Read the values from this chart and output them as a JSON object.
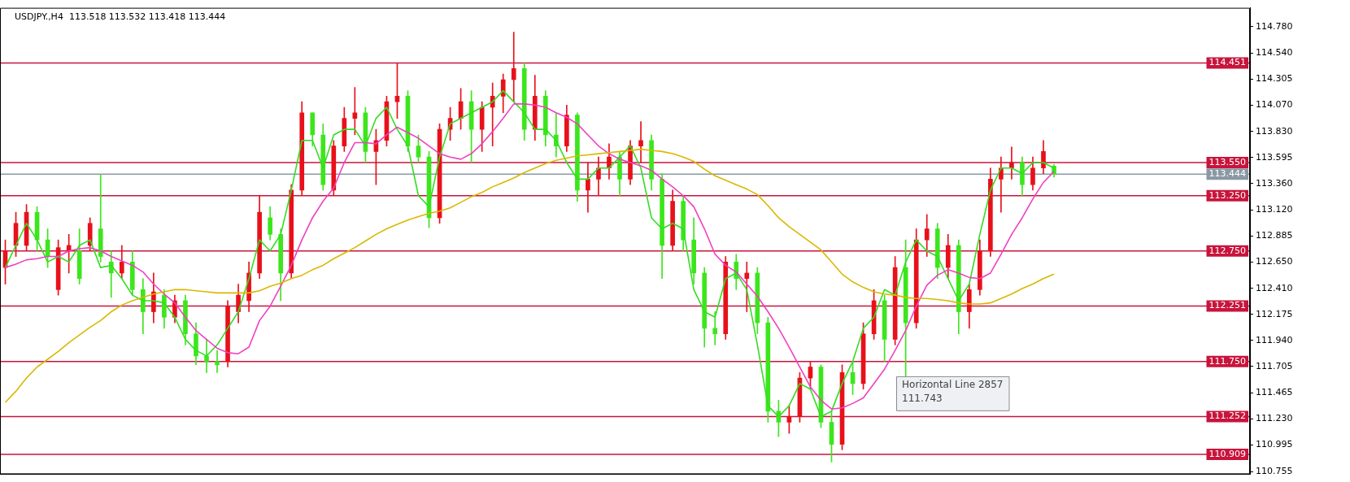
{
  "chart_data": {
    "type": "candlestick",
    "title": "USDJPY.,H4  113.518 113.532 113.418 113.444",
    "categories": [
      null,
      null,
      null,
      null,
      null,
      null,
      null,
      null,
      null,
      null,
      null,
      null,
      null,
      null,
      null,
      null,
      null,
      null,
      null,
      null,
      null,
      null,
      null,
      null,
      null,
      null,
      null,
      null,
      null,
      null,
      null,
      null,
      null,
      null,
      null,
      null,
      null,
      null,
      null,
      null,
      null,
      null,
      null,
      null,
      null,
      null,
      null,
      null,
      null,
      null,
      null,
      null,
      null,
      null,
      null,
      null,
      null,
      null,
      null,
      null,
      null,
      null,
      null,
      null,
      null,
      null,
      null,
      null,
      null,
      null,
      null,
      null,
      null,
      null,
      null,
      null,
      null,
      null,
      null,
      null,
      null,
      null,
      null,
      null,
      null,
      null,
      null,
      null,
      null,
      null,
      null,
      null,
      null,
      null,
      null,
      null,
      null,
      null,
      null,
      null,
      null,
      null,
      null,
      null,
      null,
      null,
      null,
      null,
      null,
      null,
      null,
      null,
      null,
      null,
      null,
      null,
      null,
      null
    ],
    "ohlc": [
      [
        112.6,
        112.85,
        112.45,
        112.75
      ],
      [
        112.8,
        113.1,
        112.7,
        113.0
      ],
      [
        112.8,
        113.17,
        112.75,
        113.1
      ],
      [
        113.1,
        113.15,
        112.75,
        112.85
      ],
      [
        112.85,
        112.95,
        112.6,
        112.7
      ],
      [
        112.4,
        112.85,
        112.35,
        112.78
      ],
      [
        112.75,
        112.9,
        112.55,
        112.8
      ],
      [
        112.75,
        112.95,
        112.45,
        112.5
      ],
      [
        112.8,
        113.05,
        112.75,
        113.0
      ],
      [
        112.95,
        113.44,
        112.65,
        112.7
      ],
      [
        112.65,
        112.75,
        112.33,
        112.55
      ],
      [
        112.55,
        112.8,
        112.5,
        112.65
      ],
      [
        112.65,
        112.75,
        112.35,
        112.4
      ],
      [
        112.4,
        112.5,
        112.0,
        112.2
      ],
      [
        112.2,
        112.55,
        112.1,
        112.38
      ],
      [
        112.35,
        112.4,
        112.05,
        112.15
      ],
      [
        112.15,
        112.35,
        112.1,
        112.3
      ],
      [
        112.3,
        112.35,
        111.9,
        112.0
      ],
      [
        112.0,
        112.1,
        111.72,
        111.8
      ],
      [
        111.8,
        111.95,
        111.65,
        111.75
      ],
      [
        111.75,
        111.85,
        111.65,
        111.72
      ],
      [
        111.75,
        112.3,
        111.7,
        112.25
      ],
      [
        112.2,
        112.45,
        112.1,
        112.35
      ],
      [
        112.3,
        112.65,
        112.2,
        112.55
      ],
      [
        112.55,
        113.25,
        112.5,
        113.1
      ],
      [
        113.05,
        113.15,
        112.85,
        112.9
      ],
      [
        112.9,
        112.95,
        112.3,
        112.55
      ],
      [
        112.55,
        113.35,
        112.5,
        113.3
      ],
      [
        113.3,
        114.1,
        113.25,
        114.0
      ],
      [
        114.0,
        114.0,
        113.7,
        113.8
      ],
      [
        113.8,
        113.9,
        113.3,
        113.35
      ],
      [
        113.3,
        113.75,
        113.25,
        113.7
      ],
      [
        113.7,
        114.05,
        113.65,
        113.95
      ],
      [
        113.95,
        114.23,
        113.8,
        114.0
      ],
      [
        114.0,
        114.05,
        113.55,
        113.65
      ],
      [
        113.65,
        113.85,
        113.35,
        113.75
      ],
      [
        113.75,
        114.15,
        113.7,
        114.1
      ],
      [
        114.1,
        114.45,
        113.95,
        114.15
      ],
      [
        114.15,
        114.2,
        113.65,
        113.7
      ],
      [
        113.7,
        113.8,
        113.55,
        113.6
      ],
      [
        113.6,
        113.65,
        112.96,
        113.05
      ],
      [
        113.05,
        113.9,
        113.0,
        113.85
      ],
      [
        113.85,
        114.05,
        113.75,
        113.95
      ],
      [
        113.95,
        114.22,
        113.85,
        114.1
      ],
      [
        114.1,
        114.2,
        113.55,
        113.85
      ],
      [
        113.85,
        114.1,
        113.65,
        114.05
      ],
      [
        114.05,
        114.27,
        113.7,
        114.15
      ],
      [
        114.15,
        114.35,
        114.0,
        114.3
      ],
      [
        114.3,
        114.73,
        114.1,
        114.4
      ],
      [
        114.4,
        114.45,
        113.75,
        113.85
      ],
      [
        113.85,
        114.34,
        113.75,
        114.15
      ],
      [
        114.15,
        114.2,
        113.7,
        113.8
      ],
      [
        113.8,
        114.0,
        113.6,
        113.7
      ],
      [
        113.7,
        114.07,
        113.65,
        113.98
      ],
      [
        113.98,
        114.0,
        113.2,
        113.3
      ],
      [
        113.3,
        113.55,
        113.1,
        113.4
      ],
      [
        113.4,
        113.6,
        113.25,
        113.5
      ],
      [
        113.5,
        113.72,
        113.4,
        113.6
      ],
      [
        113.6,
        113.65,
        113.25,
        113.4
      ],
      [
        113.4,
        113.75,
        113.35,
        113.7
      ],
      [
        113.7,
        113.92,
        113.55,
        113.75
      ],
      [
        113.75,
        113.8,
        113.3,
        113.4
      ],
      [
        113.4,
        113.45,
        112.5,
        112.8
      ],
      [
        112.8,
        113.3,
        112.75,
        113.2
      ],
      [
        113.2,
        113.25,
        112.75,
        112.85
      ],
      [
        112.85,
        113.05,
        112.45,
        112.55
      ],
      [
        112.55,
        112.6,
        111.88,
        112.05
      ],
      [
        112.05,
        112.2,
        111.9,
        112.0
      ],
      [
        112.0,
        112.7,
        111.95,
        112.65
      ],
      [
        112.65,
        112.72,
        112.4,
        112.5
      ],
      [
        112.5,
        112.65,
        112.2,
        112.55
      ],
      [
        112.55,
        112.6,
        112.0,
        112.1
      ],
      [
        112.1,
        112.15,
        111.2,
        111.3
      ],
      [
        111.3,
        111.4,
        111.07,
        111.2
      ],
      [
        111.2,
        111.35,
        111.1,
        111.25
      ],
      [
        111.25,
        111.65,
        111.2,
        111.6
      ],
      [
        111.6,
        111.75,
        111.5,
        111.7
      ],
      [
        111.7,
        111.72,
        111.15,
        111.2
      ],
      [
        111.2,
        111.3,
        110.84,
        111.0
      ],
      [
        111.0,
        111.72,
        110.95,
        111.65
      ],
      [
        111.65,
        111.75,
        111.45,
        111.55
      ],
      [
        111.55,
        112.1,
        111.5,
        112.0
      ],
      [
        112.0,
        112.4,
        111.95,
        112.3
      ],
      [
        112.3,
        112.35,
        111.75,
        111.95
      ],
      [
        111.95,
        112.7,
        111.9,
        112.6
      ],
      [
        112.6,
        112.85,
        111.61,
        112.1
      ],
      [
        112.1,
        112.95,
        112.05,
        112.85
      ],
      [
        112.85,
        113.08,
        112.7,
        112.95
      ],
      [
        112.95,
        113.0,
        112.5,
        112.6
      ],
      [
        112.6,
        112.9,
        112.5,
        112.8
      ],
      [
        112.8,
        112.85,
        112.0,
        112.2
      ],
      [
        112.2,
        112.45,
        112.05,
        112.4
      ],
      [
        112.4,
        112.85,
        112.35,
        112.75
      ],
      [
        112.75,
        113.5,
        112.7,
        113.4
      ],
      [
        113.4,
        113.6,
        113.1,
        113.5
      ],
      [
        113.5,
        113.69,
        113.4,
        113.55
      ],
      [
        113.55,
        113.6,
        113.25,
        113.35
      ],
      [
        113.35,
        113.6,
        113.3,
        113.5
      ],
      [
        113.5,
        113.75,
        113.45,
        113.65
      ],
      [
        113.518,
        113.532,
        113.418,
        113.444
      ],
      null,
      null,
      null,
      null,
      null,
      null,
      null,
      null,
      null,
      null,
      null,
      null,
      null,
      null,
      null,
      null,
      null,
      null
    ],
    "colors": [
      "#e8101a",
      "#e8101a",
      "#e8101a",
      "#3ce61c",
      "#3ce61c",
      "#e8101a",
      "#e8101a",
      "#3ce61c",
      "#e8101a",
      "#3ce61c",
      "#3ce61c",
      "#e8101a",
      "#3ce61c",
      "#3ce61c",
      "#e8101a",
      "#3ce61c",
      "#e8101a",
      "#3ce61c",
      "#3ce61c",
      "#3ce61c",
      "#3ce61c",
      "#e8101a",
      "#e8101a",
      "#e8101a",
      "#e8101a",
      "#3ce61c",
      "#3ce61c",
      "#e8101a",
      "#e8101a",
      "#3ce61c",
      "#3ce61c",
      "#e8101a",
      "#e8101a",
      "#e8101a",
      "#3ce61c",
      "#e8101a",
      "#e8101a",
      "#e8101a",
      "#3ce61c",
      "#3ce61c",
      "#3ce61c",
      "#e8101a",
      "#e8101a",
      "#e8101a",
      "#3ce61c",
      "#e8101a",
      "#e8101a",
      "#e8101a",
      "#e8101a",
      "#3ce61c",
      "#e8101a",
      "#3ce61c",
      "#3ce61c",
      "#e8101a",
      "#3ce61c",
      "#e8101a",
      "#e8101a",
      "#e8101a",
      "#3ce61c",
      "#e8101a",
      "#e8101a",
      "#3ce61c",
      "#3ce61c",
      "#e8101a",
      "#3ce61c",
      "#3ce61c",
      "#3ce61c",
      "#3ce61c",
      "#e8101a",
      "#3ce61c",
      "#e8101a",
      "#3ce61c",
      "#3ce61c",
      "#3ce61c",
      "#e8101a",
      "#e8101a",
      "#e8101a",
      "#3ce61c",
      "#3ce61c",
      "#e8101a",
      "#3ce61c",
      "#e8101a",
      "#e8101a",
      "#3ce61c",
      "#e8101a",
      "#3ce61c",
      "#e8101a",
      "#e8101a",
      "#3ce61c",
      "#e8101a",
      "#3ce61c",
      "#e8101a",
      "#e8101a",
      "#e8101a",
      "#e8101a",
      "#e8101a",
      "#3ce61c",
      "#e8101a",
      "#e8101a",
      "#3ce61c",
      null,
      null,
      null,
      null,
      null,
      null,
      null,
      null,
      null,
      null,
      null,
      null,
      null,
      null,
      null,
      null,
      null,
      null
    ],
    "series": [
      {
        "type": "line",
        "color": "#d9b800",
        "values": [
          111.38,
          111.48,
          111.6,
          111.7,
          111.77,
          111.84,
          111.92,
          111.99,
          112.06,
          112.12,
          112.2,
          112.26,
          112.3,
          112.33,
          112.36,
          112.38,
          112.4,
          112.4,
          112.39,
          112.38,
          112.37,
          112.37,
          112.37,
          112.37,
          112.39,
          112.43,
          112.46,
          112.5,
          112.53,
          112.58,
          112.62,
          112.68,
          112.73,
          112.78,
          112.84,
          112.9,
          112.95,
          112.99,
          113.03,
          113.06,
          113.09,
          113.11,
          113.14,
          113.19,
          113.24,
          113.28,
          113.33,
          113.37,
          113.41,
          113.46,
          113.5,
          113.54,
          113.57,
          113.59,
          113.61,
          113.62,
          113.63,
          113.64,
          113.65,
          113.66,
          113.67,
          113.66,
          113.65,
          113.63,
          113.6,
          113.56,
          113.49,
          113.43,
          113.39,
          113.35,
          113.31,
          113.26,
          113.16,
          113.05,
          112.97,
          112.9,
          112.83,
          112.76,
          112.65,
          112.54,
          112.47,
          112.42,
          112.38,
          112.36,
          112.35,
          112.33,
          112.32,
          112.32,
          112.31,
          112.3,
          112.28,
          112.27,
          112.27,
          112.28,
          112.32,
          112.36,
          112.41,
          112.45,
          112.5,
          112.54,
          null,
          null,
          null,
          null,
          null,
          null,
          null,
          null,
          null,
          null,
          null,
          null,
          null,
          null,
          null,
          null,
          null,
          null
        ]
      },
      {
        "type": "line",
        "color": "#f040c0",
        "values": [
          112.6,
          112.63,
          112.67,
          112.68,
          112.7,
          112.7,
          112.75,
          112.77,
          112.78,
          112.75,
          112.7,
          112.66,
          112.62,
          112.56,
          112.45,
          112.36,
          112.28,
          112.15,
          112.03,
          111.95,
          111.87,
          111.83,
          111.82,
          111.88,
          112.12,
          112.25,
          112.43,
          112.62,
          112.85,
          113.05,
          113.2,
          113.32,
          113.55,
          113.73,
          113.73,
          113.72,
          113.8,
          113.87,
          113.82,
          113.77,
          113.7,
          113.63,
          113.6,
          113.58,
          113.63,
          113.72,
          113.83,
          113.95,
          114.08,
          114.08,
          114.07,
          114.05,
          114.0,
          113.96,
          113.9,
          113.8,
          113.7,
          113.63,
          113.58,
          113.55,
          113.52,
          113.48,
          113.4,
          113.33,
          113.25,
          113.15,
          112.95,
          112.72,
          112.62,
          112.56,
          112.45,
          112.34,
          112.2,
          112.05,
          111.88,
          111.7,
          111.52,
          111.4,
          111.32,
          111.33,
          111.37,
          111.42,
          111.55,
          111.68,
          111.85,
          112.03,
          112.25,
          112.44,
          112.53,
          112.58,
          112.55,
          112.51,
          112.5,
          112.55,
          112.72,
          112.9,
          113.05,
          113.22,
          113.37,
          113.47,
          null,
          null,
          null,
          null,
          null,
          null,
          null,
          null,
          null,
          null,
          null,
          null,
          null,
          null,
          null,
          null,
          null,
          null
        ]
      },
      {
        "type": "line",
        "color": "#33dd22",
        "values": [
          112.6,
          112.8,
          113.0,
          112.85,
          112.65,
          112.7,
          112.65,
          112.8,
          112.85,
          112.6,
          112.62,
          112.5,
          112.35,
          112.3,
          112.3,
          112.28,
          112.15,
          111.95,
          111.85,
          111.8,
          111.9,
          112.05,
          112.2,
          112.5,
          112.85,
          112.75,
          112.9,
          113.3,
          113.75,
          113.75,
          113.5,
          113.8,
          113.85,
          113.85,
          113.7,
          113.95,
          114.05,
          113.85,
          113.7,
          113.25,
          113.15,
          113.6,
          113.9,
          113.95,
          114.0,
          114.05,
          114.1,
          114.2,
          114.1,
          114.0,
          113.85,
          113.85,
          113.75,
          113.55,
          113.4,
          113.4,
          113.5,
          113.5,
          113.6,
          113.7,
          113.5,
          113.05,
          112.95,
          113.0,
          112.95,
          112.4,
          112.2,
          112.15,
          112.5,
          112.55,
          112.4,
          111.9,
          111.35,
          111.25,
          111.35,
          111.55,
          111.5,
          111.25,
          111.3,
          111.55,
          111.75,
          112.05,
          112.15,
          112.4,
          112.35,
          112.65,
          112.85,
          112.75,
          112.7,
          112.5,
          112.3,
          112.45,
          112.9,
          113.3,
          113.5,
          113.5,
          113.45,
          113.55,
          113.55,
          113.5,
          null,
          null,
          null,
          null,
          null,
          null,
          null,
          null,
          null,
          null,
          null,
          null,
          null,
          null,
          null,
          null,
          null,
          null
        ]
      }
    ],
    "ylim": [
      110.73,
      114.95
    ],
    "yticks": [
      {
        "value": 114.78,
        "label": "114.780"
      },
      {
        "value": 114.54,
        "label": "114.540"
      },
      114.305,
      {
        "value": 114.07,
        "label": "114.070"
      },
      {
        "value": 113.83,
        "label": "113.830"
      },
      113.595,
      {
        "value": 113.36,
        "label": "113.360"
      },
      {
        "value": 113.12,
        "label": "113.120"
      },
      112.885,
      {
        "value": 112.65,
        "label": "112.650"
      },
      {
        "value": 112.41,
        "label": "112.410"
      },
      112.175,
      {
        "value": 111.94,
        "label": "111.940"
      },
      111.705,
      111.465,
      {
        "value": 111.23,
        "label": "111.230"
      },
      110.995,
      110.755
    ],
    "tick_labels": "y",
    "marker": "none",
    "ref_lines": [
      {
        "axis": "y",
        "value": 114.451,
        "label": "114.451",
        "color": "#c8143c"
      },
      {
        "axis": "y",
        "value": 113.55,
        "label": "113.550",
        "color": "#c8143c"
      },
      {
        "axis": "y",
        "value": 113.444,
        "label": "113.444",
        "color": "#8a98a4"
      },
      {
        "axis": "y",
        "value": 113.25,
        "label": "113.250",
        "color": "#c8143c"
      },
      {
        "axis": "y",
        "value": 112.75,
        "label": "112.750",
        "color": "#c8143c"
      },
      {
        "axis": "y",
        "value": 112.251,
        "label": "112.251",
        "color": "#c8143c"
      },
      {
        "axis": "y",
        "value": 111.75,
        "label": "111.750",
        "color": "#c8143c"
      },
      {
        "axis": "y",
        "value": 111.252,
        "label": "111.252",
        "color": "#c8143c"
      },
      {
        "axis": "y",
        "value": 110.909,
        "label": "110.909",
        "color": "#c8143c"
      }
    ],
    "annotations": [
      "Horizontal Line 2857",
      "111.743"
    ]
  }
}
